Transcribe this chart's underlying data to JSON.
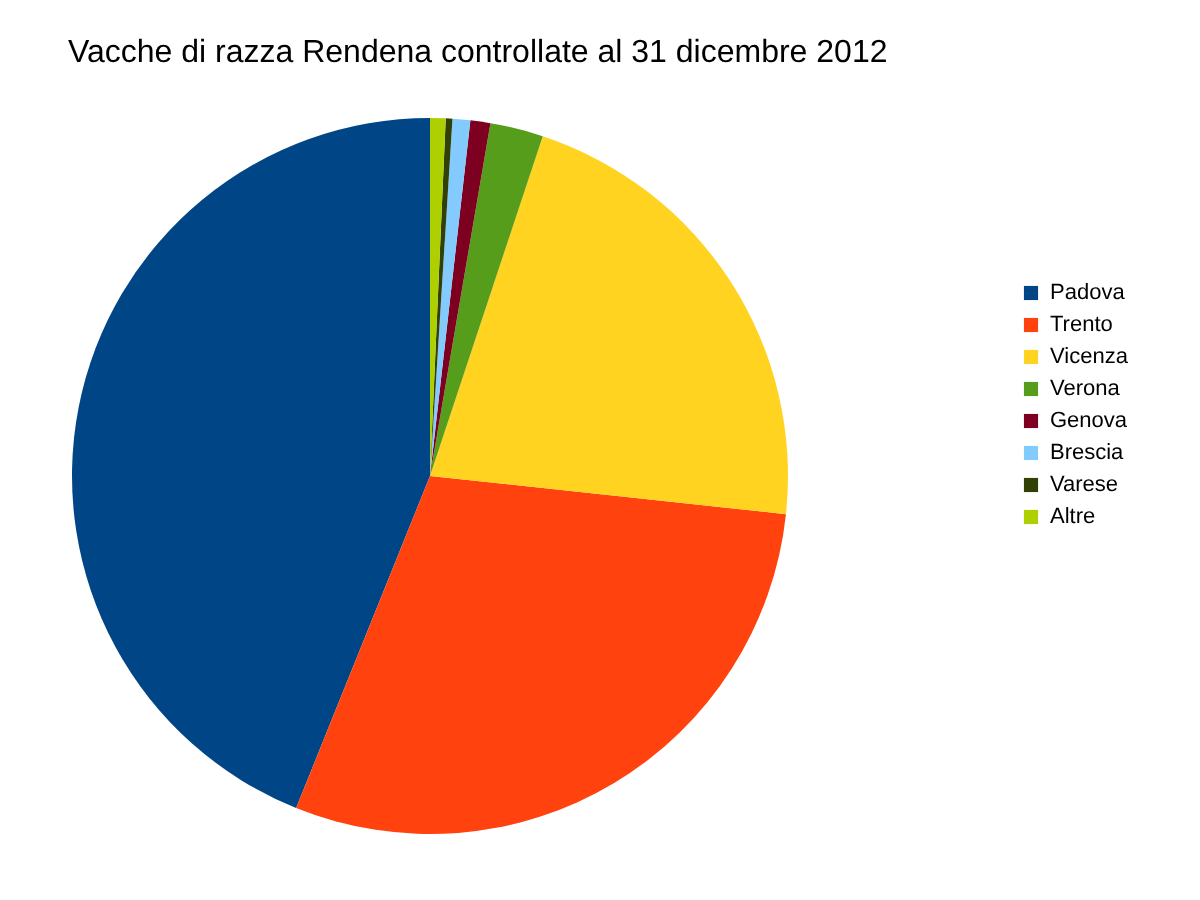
{
  "chart_data": {
    "type": "pie",
    "title": "Vacche di razza Rendena controllate al 31 dicembre 2012",
    "categories": [
      "Padova",
      "Trento",
      "Vicenza",
      "Verona",
      "Genova",
      "Brescia",
      "Varese",
      "Altre"
    ],
    "values": [
      43.9,
      29.4,
      21.6,
      2.4,
      0.9,
      0.8,
      0.3,
      0.7
    ],
    "colors": [
      "#004586",
      "#ff420e",
      "#ffd320",
      "#579d1c",
      "#7e0021",
      "#83caff",
      "#314004",
      "#aecf00"
    ],
    "legend": "right"
  }
}
